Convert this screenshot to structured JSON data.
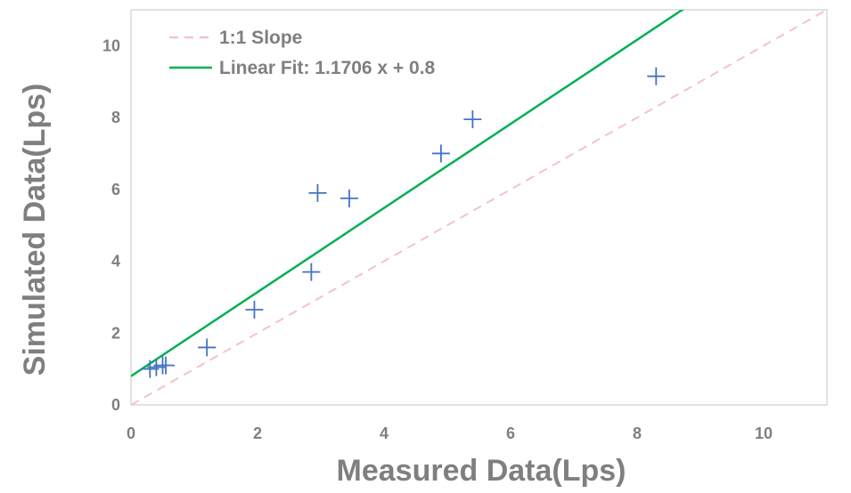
{
  "chart_data": {
    "type": "scatter",
    "xlabel": "Measured Data(Lps)",
    "ylabel": "Simulated Data(Lps)",
    "xlim": [
      0,
      11
    ],
    "ylim": [
      0,
      11
    ],
    "x_ticks": [
      0,
      2,
      4,
      6,
      8,
      10
    ],
    "y_ticks": [
      0,
      2,
      4,
      6,
      8,
      10
    ],
    "grid": false,
    "legend_position": "top-left",
    "colors": {
      "points": "#4472c4",
      "fit_line": "#00b050",
      "one_to_one": "#f4c2cc",
      "axis_text": "#7f7f7f",
      "frame": "#d9d9d9"
    },
    "series": [
      {
        "kind": "points",
        "x": [
          0.3,
          0.4,
          0.5,
          0.55,
          1.2,
          1.95,
          2.85,
          2.95,
          3.45,
          4.9,
          5.4,
          8.3
        ],
        "y": [
          1.0,
          1.05,
          1.1,
          1.1,
          1.6,
          2.65,
          3.7,
          5.9,
          5.75,
          7.0,
          7.95,
          9.15
        ]
      },
      {
        "kind": "line",
        "name": "1:1 Slope",
        "slope": 1,
        "intercept": 0,
        "style": "dashed"
      },
      {
        "kind": "line",
        "name": "Linear Fit: 1.1706 x + 0.8",
        "slope": 1.1706,
        "intercept": 0.8,
        "style": "solid"
      }
    ]
  }
}
